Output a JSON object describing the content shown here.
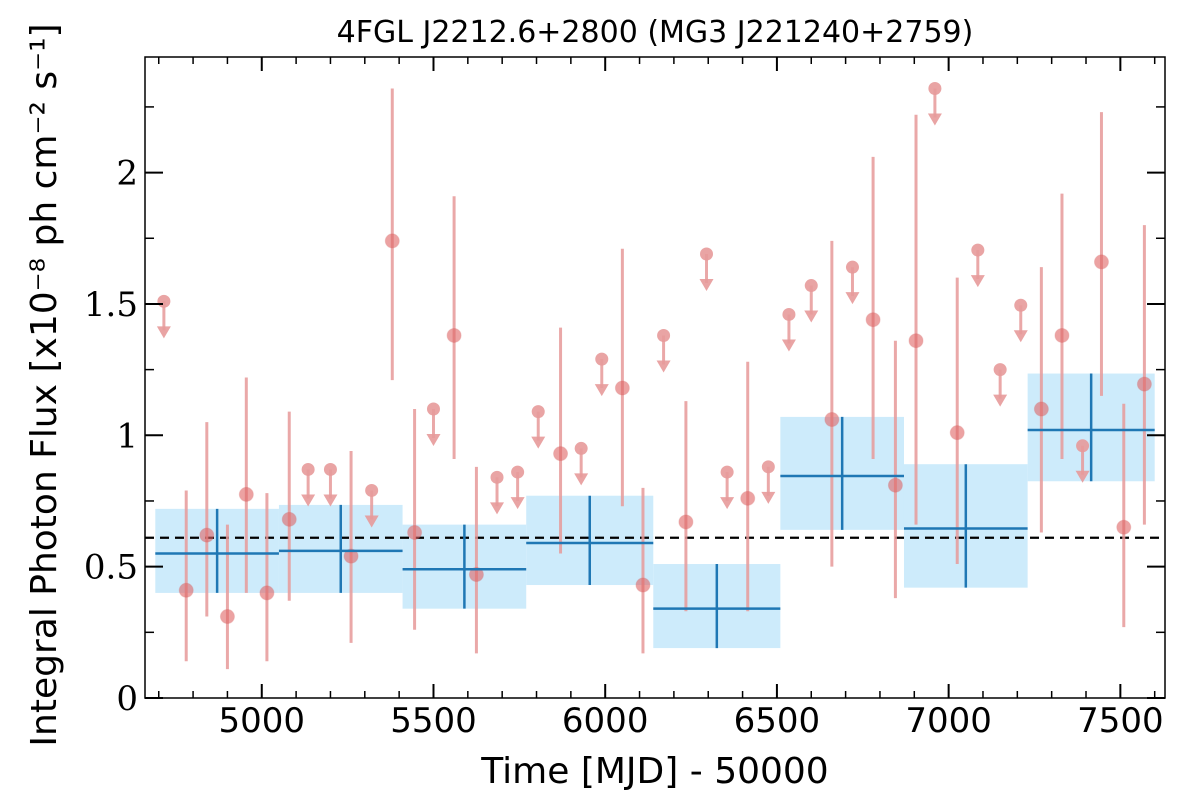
{
  "chart_data": {
    "type": "scatter",
    "title": "4FGL J2212.6+2800 (MG3 J221240+2759)",
    "xlabel": "Time [MJD] - 50000",
    "ylabel": "Integral Photon Flux [x10⁻⁸ ph cm⁻² s⁻¹]",
    "xlim": [
      4660,
      7630
    ],
    "ylim": [
      0,
      2.44
    ],
    "xticks": [
      5000,
      5500,
      6000,
      6500,
      7000,
      7500
    ],
    "xtick_labels": [
      "5000",
      "5500",
      "6000",
      "6500",
      "7000",
      "7500"
    ],
    "yticks": [
      0,
      0.5,
      1,
      1.5,
      2
    ],
    "ytick_labels": [
      "0",
      "0.5",
      "1",
      "1.5",
      "2"
    ],
    "grid": false,
    "reference_line": {
      "y": 0.61,
      "style": "dashed",
      "color": "#000000"
    },
    "colors": {
      "point": "#e06666",
      "errorbar": "#e79a9a",
      "bin_line": "#1f77b4",
      "bin_band": "#cdebfb"
    },
    "series": [
      {
        "kind": "points",
        "points": [
          {
            "x": 4780,
            "y": 0.41,
            "lo": 0.14,
            "hi": 0.79
          },
          {
            "x": 4840,
            "y": 0.62,
            "lo": 0.31,
            "hi": 1.05
          },
          {
            "x": 4900,
            "y": 0.31,
            "lo": 0.11,
            "hi": 0.66
          },
          {
            "x": 4955,
            "y": 0.775,
            "lo": 0.4,
            "hi": 1.22
          },
          {
            "x": 5015,
            "y": 0.4,
            "lo": 0.14,
            "hi": 0.78
          },
          {
            "x": 5080,
            "y": 0.68,
            "lo": 0.37,
            "hi": 1.09
          },
          {
            "x": 5260,
            "y": 0.54,
            "lo": 0.21,
            "hi": 0.94
          },
          {
            "x": 5380,
            "y": 1.74,
            "lo": 1.21,
            "hi": 2.32
          },
          {
            "x": 5445,
            "y": 0.63,
            "lo": 0.26,
            "hi": 1.1
          },
          {
            "x": 5560,
            "y": 1.38,
            "lo": 0.91,
            "hi": 1.91
          },
          {
            "x": 5625,
            "y": 0.47,
            "lo": 0.17,
            "hi": 0.88
          },
          {
            "x": 5870,
            "y": 0.93,
            "lo": 0.55,
            "hi": 1.41
          },
          {
            "x": 6050,
            "y": 1.18,
            "lo": 0.73,
            "hi": 1.71
          },
          {
            "x": 6110,
            "y": 0.43,
            "lo": 0.17,
            "hi": 0.8
          },
          {
            "x": 6235,
            "y": 0.67,
            "lo": 0.33,
            "hi": 1.13
          },
          {
            "x": 6415,
            "y": 0.76,
            "lo": 0.33,
            "hi": 1.28
          },
          {
            "x": 6660,
            "y": 1.06,
            "lo": 0.5,
            "hi": 1.74
          },
          {
            "x": 6780,
            "y": 1.44,
            "lo": 0.91,
            "hi": 2.06
          },
          {
            "x": 6845,
            "y": 0.81,
            "lo": 0.38,
            "hi": 1.36
          },
          {
            "x": 6905,
            "y": 1.36,
            "lo": 0.66,
            "hi": 2.22
          },
          {
            "x": 7025,
            "y": 1.01,
            "lo": 0.51,
            "hi": 1.6
          },
          {
            "x": 7270,
            "y": 1.1,
            "lo": 0.63,
            "hi": 1.64
          },
          {
            "x": 7330,
            "y": 1.38,
            "lo": 0.91,
            "hi": 1.92
          },
          {
            "x": 7445,
            "y": 1.66,
            "lo": 1.15,
            "hi": 2.23
          },
          {
            "x": 7510,
            "y": 0.65,
            "lo": 0.27,
            "hi": 1.12
          },
          {
            "x": 7570,
            "y": 1.195,
            "lo": 0.66,
            "hi": 1.8
          }
        ]
      },
      {
        "kind": "upper_limits",
        "points": [
          {
            "x": 4715,
            "y": 1.51
          },
          {
            "x": 5135,
            "y": 0.87
          },
          {
            "x": 5200,
            "y": 0.87
          },
          {
            "x": 5320,
            "y": 0.79
          },
          {
            "x": 5500,
            "y": 1.1
          },
          {
            "x": 5685,
            "y": 0.84
          },
          {
            "x": 5745,
            "y": 0.86
          },
          {
            "x": 5805,
            "y": 1.09
          },
          {
            "x": 5930,
            "y": 0.95
          },
          {
            "x": 5990,
            "y": 1.29
          },
          {
            "x": 6170,
            "y": 1.38
          },
          {
            "x": 6295,
            "y": 1.69
          },
          {
            "x": 6355,
            "y": 0.86
          },
          {
            "x": 6475,
            "y": 0.88
          },
          {
            "x": 6535,
            "y": 1.46
          },
          {
            "x": 6600,
            "y": 1.57
          },
          {
            "x": 6720,
            "y": 1.64
          },
          {
            "x": 6960,
            "y": 2.32
          },
          {
            "x": 7085,
            "y": 1.705
          },
          {
            "x": 7150,
            "y": 1.25
          },
          {
            "x": 7210,
            "y": 1.495
          },
          {
            "x": 7390,
            "y": 0.96
          }
        ]
      },
      {
        "kind": "binned",
        "bins": [
          {
            "x0": 4690,
            "x1": 5050,
            "xc": 4870,
            "y": 0.55,
            "lo": 0.4,
            "hi": 0.72
          },
          {
            "x0": 5050,
            "x1": 5410,
            "xc": 5230,
            "y": 0.56,
            "lo": 0.4,
            "hi": 0.735
          },
          {
            "x0": 5410,
            "x1": 5770,
            "xc": 5590,
            "y": 0.49,
            "lo": 0.34,
            "hi": 0.66
          },
          {
            "x0": 5770,
            "x1": 6140,
            "xc": 5955,
            "y": 0.59,
            "lo": 0.43,
            "hi": 0.77
          },
          {
            "x0": 6140,
            "x1": 6510,
            "xc": 6325,
            "y": 0.34,
            "lo": 0.19,
            "hi": 0.51
          },
          {
            "x0": 6510,
            "x1": 6870,
            "xc": 6690,
            "y": 0.845,
            "lo": 0.64,
            "hi": 1.07
          },
          {
            "x0": 6870,
            "x1": 7230,
            "xc": 7050,
            "y": 0.645,
            "lo": 0.42,
            "hi": 0.89
          },
          {
            "x0": 7230,
            "x1": 7600,
            "xc": 7415,
            "y": 1.02,
            "lo": 0.825,
            "hi": 1.235
          }
        ]
      }
    ]
  }
}
